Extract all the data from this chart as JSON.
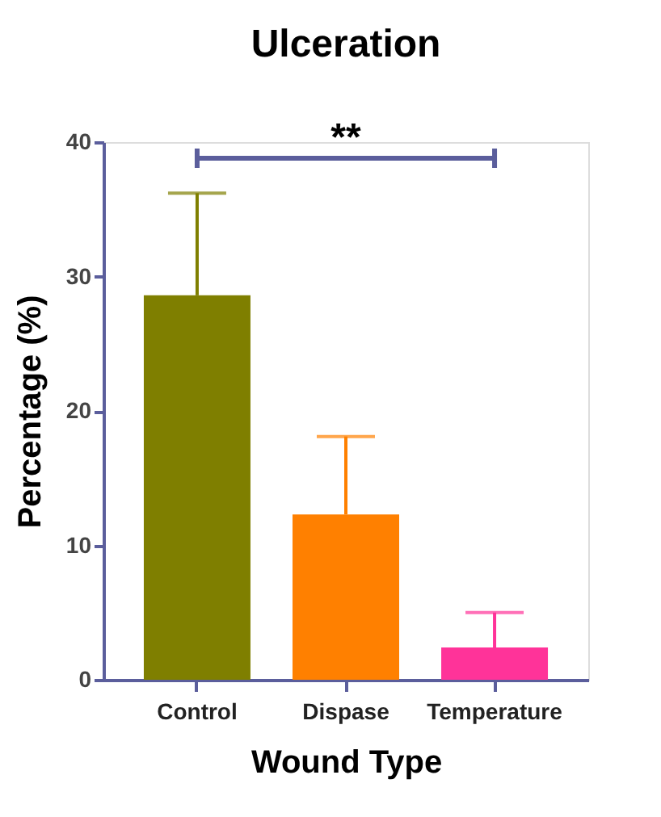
{
  "chart_data": {
    "type": "bar",
    "title": "Ulceration",
    "xlabel": "Wound Type",
    "ylabel": "Percentage (%)",
    "categories": [
      "Control",
      "Dispase",
      "Temperature"
    ],
    "values": [
      28.6,
      12.3,
      2.4
    ],
    "colors": [
      "#7f7f00",
      "#ff8000",
      "#ff3399"
    ],
    "errors": [
      [
        28.6,
        36.2
      ],
      [
        12.3,
        18.1
      ],
      [
        2.4,
        5.0
      ]
    ],
    "ylim": [
      0,
      40
    ],
    "yticks": [
      0,
      10,
      20,
      30,
      40
    ],
    "grid": false,
    "legend": false,
    "annotations": [
      "**"
    ]
  }
}
